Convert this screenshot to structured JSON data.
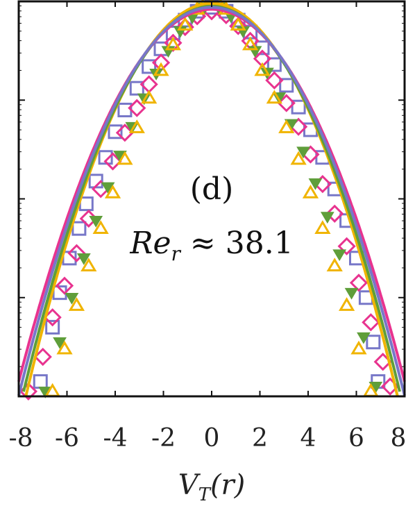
{
  "chart_data": {
    "type": "scatter",
    "xlabel": "V_T(r)",
    "xlabel_parts": {
      "main": "V",
      "sub": "T",
      "rest": "(r)"
    },
    "annotations": [
      {
        "label": "(d)"
      },
      {
        "label_main": "Re",
        "label_sub": "r",
        "label_rest": " ≈ 38.1"
      }
    ],
    "x_ticks": [
      "-8",
      "-6",
      "-4",
      "-2",
      "0",
      "2",
      "4",
      "6",
      "8"
    ],
    "xlim": [
      -8,
      8
    ],
    "y_scale": "log",
    "ylim_decades": [
      -4,
      0
    ],
    "grid": false,
    "legend": "none",
    "series": [
      {
        "marker": "square",
        "color": "#7777c8",
        "points": [
          [
            -7.1,
            -3.85
          ],
          [
            -6.6,
            -3.3
          ],
          [
            -6.3,
            -2.95
          ],
          [
            -5.9,
            -2.6
          ],
          [
            -5.5,
            -2.3
          ],
          [
            -5.2,
            -2.05
          ],
          [
            -4.8,
            -1.82
          ],
          [
            -4.4,
            -1.58
          ],
          [
            -4.0,
            -1.32
          ],
          [
            -3.6,
            -1.1
          ],
          [
            -3.1,
            -0.88
          ],
          [
            -2.6,
            -0.66
          ],
          [
            -2.1,
            -0.48
          ],
          [
            -1.6,
            -0.32
          ],
          [
            -1.1,
            -0.19
          ],
          [
            -0.6,
            -0.1
          ],
          [
            0.0,
            -0.06
          ],
          [
            0.6,
            -0.1
          ],
          [
            1.1,
            -0.19
          ],
          [
            1.6,
            -0.31
          ],
          [
            2.1,
            -0.47
          ],
          [
            2.6,
            -0.64
          ],
          [
            3.1,
            -0.85
          ],
          [
            3.6,
            -1.07
          ],
          [
            4.1,
            -1.3
          ],
          [
            4.6,
            -1.58
          ],
          [
            5.1,
            -1.9
          ],
          [
            5.6,
            -2.22
          ],
          [
            6.0,
            -2.6
          ],
          [
            6.4,
            -3.0
          ],
          [
            6.7,
            -3.45
          ],
          [
            6.9,
            -3.85
          ]
        ]
      },
      {
        "marker": "diamond",
        "color": "#e8338f",
        "points": [
          [
            -7.6,
            -3.95
          ],
          [
            -7.0,
            -3.6
          ],
          [
            -6.6,
            -3.2
          ],
          [
            -6.1,
            -2.88
          ],
          [
            -5.6,
            -2.55
          ],
          [
            -5.1,
            -2.2
          ],
          [
            -4.6,
            -1.9
          ],
          [
            -4.1,
            -1.62
          ],
          [
            -3.6,
            -1.33
          ],
          [
            -3.1,
            -1.08
          ],
          [
            -2.6,
            -0.84
          ],
          [
            -2.1,
            -0.62
          ],
          [
            -1.6,
            -0.42
          ],
          [
            -1.1,
            -0.26
          ],
          [
            -0.6,
            -0.15
          ],
          [
            0.0,
            -0.1
          ],
          [
            0.6,
            -0.14
          ],
          [
            1.1,
            -0.25
          ],
          [
            1.6,
            -0.4
          ],
          [
            2.1,
            -0.58
          ],
          [
            2.6,
            -0.8
          ],
          [
            3.1,
            -1.03
          ],
          [
            3.6,
            -1.27
          ],
          [
            4.1,
            -1.55
          ],
          [
            4.6,
            -1.85
          ],
          [
            5.1,
            -2.15
          ],
          [
            5.6,
            -2.48
          ],
          [
            6.1,
            -2.85
          ],
          [
            6.6,
            -3.25
          ],
          [
            7.1,
            -3.65
          ],
          [
            7.4,
            -3.9
          ]
        ]
      },
      {
        "marker": "triangle-down",
        "color": "#5f9e3a",
        "points": [
          [
            -6.9,
            -3.95
          ],
          [
            -6.3,
            -3.45
          ],
          [
            -5.8,
            -3.0
          ],
          [
            -5.3,
            -2.6
          ],
          [
            -4.8,
            -2.22
          ],
          [
            -4.3,
            -1.88
          ],
          [
            -3.8,
            -1.56
          ],
          [
            -3.3,
            -1.27
          ],
          [
            -2.8,
            -0.98
          ],
          [
            -2.3,
            -0.73
          ],
          [
            -1.8,
            -0.5
          ],
          [
            -1.3,
            -0.3
          ],
          [
            -0.8,
            -0.16
          ],
          [
            -0.3,
            -0.06
          ],
          [
            0.3,
            -0.06
          ],
          [
            0.8,
            -0.15
          ],
          [
            1.3,
            -0.3
          ],
          [
            1.8,
            -0.5
          ],
          [
            2.3,
            -0.72
          ],
          [
            2.8,
            -0.97
          ],
          [
            3.3,
            -1.24
          ],
          [
            3.8,
            -1.52
          ],
          [
            4.3,
            -1.84
          ],
          [
            4.8,
            -2.18
          ],
          [
            5.3,
            -2.56
          ],
          [
            5.8,
            -2.95
          ],
          [
            6.3,
            -3.4
          ],
          [
            6.8,
            -3.9
          ]
        ]
      },
      {
        "marker": "triangle-up",
        "color": "#f0b400",
        "points": [
          [
            -6.6,
            -3.95
          ],
          [
            -6.1,
            -3.52
          ],
          [
            -5.6,
            -3.08
          ],
          [
            -5.1,
            -2.68
          ],
          [
            -4.6,
            -2.3
          ],
          [
            -4.1,
            -1.94
          ],
          [
            -3.6,
            -1.6
          ],
          [
            -3.1,
            -1.28
          ],
          [
            -2.6,
            -0.98
          ],
          [
            -2.1,
            -0.7
          ],
          [
            -1.6,
            -0.44
          ],
          [
            -1.1,
            -0.24
          ],
          [
            -0.6,
            -0.08
          ],
          [
            -0.2,
            0.02
          ],
          [
            0.2,
            0.02
          ],
          [
            0.6,
            -0.08
          ],
          [
            1.1,
            -0.24
          ],
          [
            1.6,
            -0.44
          ],
          [
            2.1,
            -0.7
          ],
          [
            2.6,
            -0.98
          ],
          [
            3.1,
            -1.28
          ],
          [
            3.6,
            -1.6
          ],
          [
            4.1,
            -1.94
          ],
          [
            4.6,
            -2.3
          ],
          [
            5.1,
            -2.68
          ],
          [
            5.6,
            -3.08
          ],
          [
            6.1,
            -3.52
          ],
          [
            6.6,
            -3.95
          ]
        ]
      }
    ],
    "curves": [
      {
        "color": "#f0b400",
        "sigma": 1.8,
        "peak": -0.02
      },
      {
        "color": "#5f9e3a",
        "sigma": 1.84,
        "peak": -0.05
      },
      {
        "color": "#e8338f",
        "sigma": 1.92,
        "peak": -0.08
      },
      {
        "color": "#7777c8",
        "sigma": 1.88,
        "peak": -0.06
      }
    ]
  }
}
